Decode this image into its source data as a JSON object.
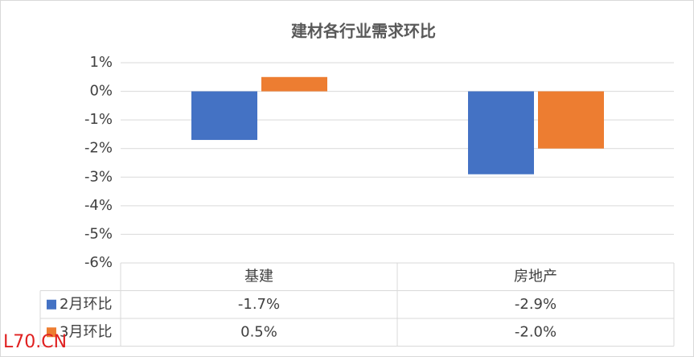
{
  "chart_data": {
    "type": "bar",
    "title": "建材各行业需求环比",
    "categories": [
      "基建",
      "房地产"
    ],
    "series": [
      {
        "name": "2月环比",
        "color": "#4472c4",
        "values": [
          -1.7,
          -2.9
        ],
        "value_labels": [
          "-1.7%",
          "-2.9%"
        ]
      },
      {
        "name": "3月环比",
        "color": "#ed7d31",
        "values": [
          0.5,
          -2.0
        ],
        "value_labels": [
          "0.5%",
          "-2.0%"
        ]
      }
    ],
    "ylim": [
      -6,
      1
    ],
    "yticks": [
      {
        "value": 1,
        "label": "1%"
      },
      {
        "value": 0,
        "label": "0%"
      },
      {
        "value": -1,
        "label": "-1%"
      },
      {
        "value": -2,
        "label": "-2%"
      },
      {
        "value": -3,
        "label": "-3%"
      },
      {
        "value": -4,
        "label": "-4%"
      },
      {
        "value": -5,
        "label": "-5%"
      },
      {
        "value": -6,
        "label": "-6%"
      }
    ],
    "grid": true,
    "data_table": true,
    "watermark": "L70.CN"
  }
}
